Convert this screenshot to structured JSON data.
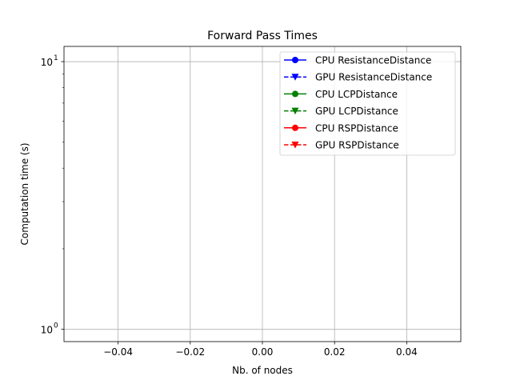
{
  "chart_data": {
    "type": "line",
    "title": "Forward Pass Times",
    "xlabel": "Nb. of nodes",
    "ylabel": "Computation time (s)",
    "xlim": [
      -0.055,
      0.055
    ],
    "ylim": [
      0.9,
      11.4
    ],
    "yscale": "log",
    "grid": true,
    "x_ticks": [
      -0.04,
      -0.02,
      0.0,
      0.02,
      0.04
    ],
    "x_tick_labels": [
      "−0.04",
      "−0.02",
      "0.00",
      "0.02",
      "0.04"
    ],
    "y_ticks": [
      1,
      10
    ],
    "y_tick_base": "10",
    "y_tick_exponents": [
      "0",
      "1"
    ],
    "y_minor_ticks": [
      2,
      3,
      4,
      5,
      6,
      7,
      8,
      9
    ],
    "legend_position": "upper right",
    "series": [
      {
        "name": "CPU ResistanceDistance",
        "color": "#0000ff",
        "linestyle": "solid",
        "marker": "circle",
        "x": [],
        "y": []
      },
      {
        "name": "GPU ResistanceDistance",
        "color": "#0000ff",
        "linestyle": "dashed",
        "marker": "triangle-down",
        "x": [],
        "y": []
      },
      {
        "name": "CPU LCPDistance",
        "color": "#008000",
        "linestyle": "solid",
        "marker": "circle",
        "x": [],
        "y": []
      },
      {
        "name": "GPU LCPDistance",
        "color": "#008000",
        "linestyle": "dashed",
        "marker": "triangle-down",
        "x": [],
        "y": []
      },
      {
        "name": "CPU RSPDistance",
        "color": "#ff0000",
        "linestyle": "solid",
        "marker": "circle",
        "x": [],
        "y": []
      },
      {
        "name": "GPU RSPDistance",
        "color": "#ff0000",
        "linestyle": "dashed",
        "marker": "triangle-down",
        "x": [],
        "y": []
      }
    ]
  }
}
